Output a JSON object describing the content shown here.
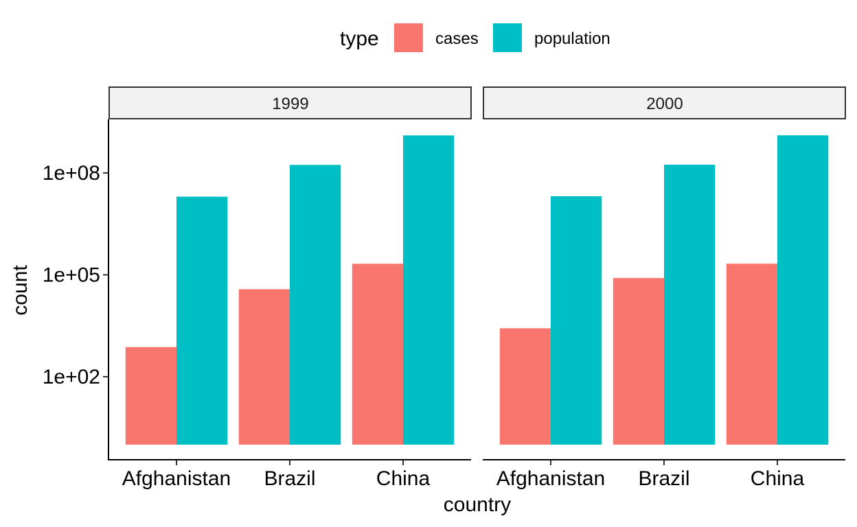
{
  "chart_data": {
    "type": "bar",
    "facet_variable": "year",
    "facets": [
      "1999",
      "2000"
    ],
    "categories": [
      "Afghanistan",
      "Brazil",
      "China"
    ],
    "xlabel": "country",
    "ylabel": "count",
    "y_scale": "log10",
    "ylim": [
      1,
      1000000000
    ],
    "y_ticks": [
      100,
      100000,
      100000000
    ],
    "y_tick_labels": [
      "1e+02",
      "1e+05",
      "1e+08"
    ],
    "legend": {
      "title": "type",
      "position": "top",
      "entries": [
        {
          "name": "cases",
          "color": "#F8766D"
        },
        {
          "name": "population",
          "color": "#00BFC4"
        }
      ]
    },
    "series": [
      {
        "name": "cases",
        "color": "#F8766D",
        "panels": {
          "1999": [
            745,
            37737,
            212258
          ],
          "2000": [
            2666,
            80488,
            213766
          ]
        }
      },
      {
        "name": "population",
        "color": "#00BFC4",
        "panels": {
          "1999": [
            19987071,
            172006362,
            1272915272
          ],
          "2000": [
            20595360,
            174504898,
            1280428583
          ]
        }
      }
    ],
    "grid": false
  }
}
